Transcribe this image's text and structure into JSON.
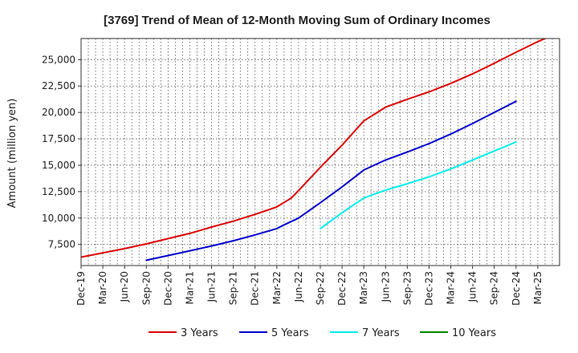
{
  "chart_data": {
    "type": "line",
    "title": "[3769]  Trend of Mean of 12-Month Moving Sum of Ordinary Incomes",
    "xlabel": "",
    "ylabel": "Amount (million yen)",
    "ylim": [
      5500,
      27000
    ],
    "yticks": [
      7500,
      10000,
      12500,
      15000,
      17500,
      20000,
      22500,
      25000
    ],
    "ytick_labels": [
      "7,500",
      "10,000",
      "12,500",
      "15,000",
      "17,500",
      "20,000",
      "22,500",
      "25,000"
    ],
    "x_range": [
      0,
      66
    ],
    "xtick_labels": [
      "Dec-19",
      "Mar-20",
      "Jun-20",
      "Sep-20",
      "Dec-20",
      "Mar-21",
      "Jun-21",
      "Sep-21",
      "Dec-21",
      "Mar-22",
      "Jun-22",
      "Sep-22",
      "Dec-22",
      "Mar-23",
      "Jun-23",
      "Sep-23",
      "Dec-23",
      "Mar-24",
      "Jun-24",
      "Sep-24",
      "Dec-24",
      "Mar-25"
    ],
    "x_unit": "months since Dec-19",
    "grid": true,
    "legend_position": "bottom",
    "series": [
      {
        "name": "3 Years",
        "color": "#dd0000",
        "x": [
          0,
          3,
          6,
          9,
          12,
          15,
          18,
          21,
          24,
          27,
          29,
          30,
          33,
          36,
          39,
          42,
          43,
          45,
          48,
          51,
          54,
          57,
          60,
          63,
          64
        ],
        "y": [
          6300,
          6700,
          7100,
          7550,
          8050,
          8550,
          9150,
          9700,
          10350,
          11050,
          11900,
          12600,
          14800,
          16900,
          19200,
          20500,
          20750,
          21250,
          21950,
          22750,
          23650,
          24650,
          25700,
          26700,
          27000
        ]
      },
      {
        "name": "5 Years",
        "color": "#0000cc",
        "x": [
          9,
          12,
          15,
          18,
          21,
          24,
          27,
          28,
          30,
          33,
          36,
          39,
          42,
          45,
          48,
          51,
          54,
          57,
          60
        ],
        "y": [
          6000,
          6450,
          6900,
          7350,
          7850,
          8400,
          9000,
          9350,
          10000,
          11450,
          12950,
          14550,
          15500,
          16250,
          17050,
          17950,
          18950,
          20000,
          21050
        ]
      },
      {
        "name": "7 Years",
        "color": "#00eeee",
        "x": [
          33,
          36,
          39,
          42,
          45,
          48,
          51,
          54,
          57,
          60
        ],
        "y": [
          9000,
          10500,
          11900,
          12650,
          13250,
          13900,
          14650,
          15500,
          16350,
          17200
        ]
      },
      {
        "name": "10 Years",
        "color": "#008800",
        "x": [],
        "y": []
      }
    ]
  }
}
